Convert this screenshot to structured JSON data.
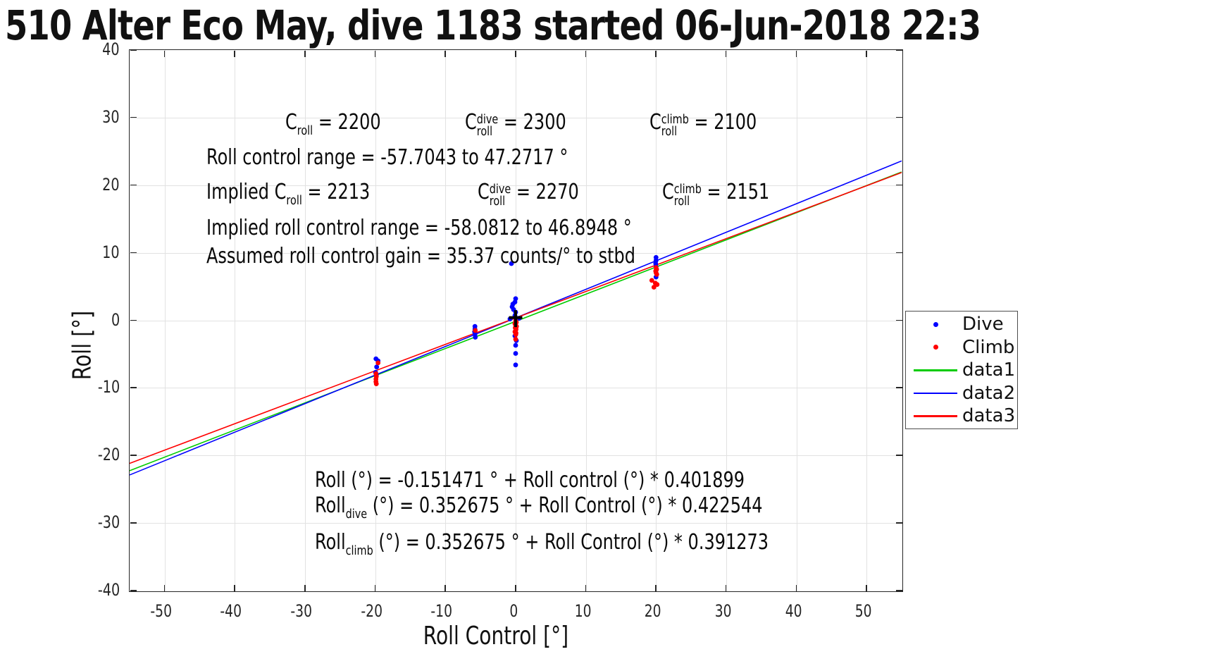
{
  "title": "510 Alter Eco May, dive 1183 started 06-Jun-2018 22:3",
  "colors": {
    "dive": "#0000ff",
    "climb": "#ff0000",
    "data1": "#00cc00",
    "data2": "#0000ff",
    "data3": "#ff0000",
    "axis": "#262626",
    "grid": "#e2e2e2",
    "cross_marker": "#000000"
  },
  "chart_data": {
    "type": "scatter",
    "title": "510 Alter Eco May, dive 1183 started 06-Jun-2018 22:3",
    "xlabel": "Roll Control [°]",
    "ylabel": "Roll [°]",
    "xlim": [
      -55,
      55
    ],
    "ylim": [
      -40,
      40
    ],
    "xticks": [
      -50,
      -40,
      -30,
      -20,
      -10,
      0,
      10,
      20,
      30,
      40,
      50
    ],
    "yticks": [
      -40,
      -30,
      -20,
      -10,
      0,
      10,
      20,
      30,
      40
    ],
    "grid": true,
    "legend": {
      "position": "right",
      "entries": [
        {
          "label": "Dive",
          "marker": "dot",
          "color": "#0000ff"
        },
        {
          "label": "Climb",
          "marker": "dot",
          "color": "#ff0000"
        },
        {
          "label": "data1",
          "marker": "line",
          "color": "#00cc00"
        },
        {
          "label": "data2",
          "marker": "line",
          "color": "#0000ff"
        },
        {
          "label": "data3",
          "marker": "line",
          "color": "#ff0000"
        }
      ]
    },
    "series": [
      {
        "name": "Dive",
        "type": "scatter",
        "color": "#0000ff",
        "points": [
          [
            -19.9,
            -5.7
          ],
          [
            -19.6,
            -6.0
          ],
          [
            -19.8,
            -6.9
          ],
          [
            -19.95,
            -7.7
          ],
          [
            -19.85,
            -8.1
          ],
          [
            -5.8,
            -0.9
          ],
          [
            -5.8,
            -1.3
          ],
          [
            -5.85,
            -1.7
          ],
          [
            -5.8,
            -2.1
          ],
          [
            -5.75,
            -2.5
          ],
          [
            -0.6,
            8.4
          ],
          [
            0,
            3.2
          ],
          [
            -0.1,
            2.7
          ],
          [
            -0.4,
            2.4
          ],
          [
            -0.5,
            2.0
          ],
          [
            -0.3,
            1.6
          ],
          [
            0,
            1.2
          ],
          [
            -0.1,
            0.7
          ],
          [
            -0.8,
            0.2
          ],
          [
            0.5,
            0.3
          ],
          [
            0,
            -0.2
          ],
          [
            -0.1,
            -2.3
          ],
          [
            0.1,
            -3.0
          ],
          [
            0,
            -3.7
          ],
          [
            0,
            -4.9
          ],
          [
            0,
            -6.6
          ],
          [
            20,
            9.3
          ],
          [
            20,
            8.85
          ],
          [
            19.95,
            8.4
          ],
          [
            20,
            7.95
          ],
          [
            20.05,
            7.5
          ],
          [
            20,
            6.4
          ]
        ]
      },
      {
        "name": "Climb",
        "type": "scatter",
        "color": "#ff0000",
        "points": [
          [
            -19.6,
            -6.3
          ],
          [
            -19.9,
            -7.9
          ],
          [
            -19.85,
            -8.3
          ],
          [
            -19.9,
            -8.7
          ],
          [
            -19.9,
            -9.1
          ],
          [
            -19.85,
            -9.4
          ],
          [
            -5.75,
            -1.5
          ],
          [
            0,
            -0.1
          ],
          [
            0.1,
            -0.3
          ],
          [
            -0.1,
            -0.5
          ],
          [
            0,
            -0.7
          ],
          [
            0.12,
            -0.9
          ],
          [
            -0.06,
            -1.1
          ],
          [
            0.06,
            -1.3
          ],
          [
            0,
            -1.5
          ],
          [
            -0.1,
            -1.7
          ],
          [
            0.05,
            -1.9
          ],
          [
            0.02,
            -2.1
          ],
          [
            0,
            -2.8
          ],
          [
            20,
            7.8
          ],
          [
            20.08,
            7.55
          ],
          [
            19.95,
            7.3
          ],
          [
            20,
            7.05
          ],
          [
            20.1,
            6.8
          ],
          [
            19.4,
            5.9
          ],
          [
            19.9,
            5.5
          ],
          [
            20.15,
            5.3
          ],
          [
            19.7,
            4.9
          ]
        ]
      },
      {
        "name": "data1",
        "type": "line",
        "color": "#00cc00",
        "intercept": -0.151471,
        "slope": 0.401899
      },
      {
        "name": "data2",
        "type": "line",
        "color": "#0000ff",
        "intercept": 0.352675,
        "slope": 0.422544
      },
      {
        "name": "data3",
        "type": "line",
        "color": "#ff0000",
        "intercept": 0.352675,
        "slope": 0.391273
      }
    ],
    "cross_marker": {
      "x": 0,
      "y": 0.4,
      "half_width": 0.95,
      "half_up": 1.1,
      "half_down": 1.4,
      "color": "#000000"
    },
    "annotations": [
      {
        "left": 405,
        "top": 155,
        "parts": [
          {
            "t": "txt",
            "v": "C"
          },
          {
            "t": "sub",
            "v": "roll"
          },
          {
            "t": "txt",
            "v": " = 2200"
          }
        ]
      },
      {
        "left": 660,
        "top": 155,
        "parts": [
          {
            "t": "txt",
            "v": "C"
          },
          {
            "t": "ss",
            "sup": "dive",
            "sub": "roll"
          },
          {
            "t": "txt",
            "v": " = 2300"
          }
        ]
      },
      {
        "left": 922,
        "top": 155,
        "parts": [
          {
            "t": "txt",
            "v": "C"
          },
          {
            "t": "ss",
            "sup": "climb",
            "sub": "roll"
          },
          {
            "t": "txt",
            "v": " = 2100"
          }
        ]
      },
      {
        "left": 293,
        "top": 205,
        "parts": [
          {
            "t": "txt",
            "v": "Roll control range = -57.7043 to 47.2717 °"
          }
        ]
      },
      {
        "left": 293,
        "top": 254,
        "parts": [
          {
            "t": "txt",
            "v": "Implied C"
          },
          {
            "t": "sub",
            "v": "roll"
          },
          {
            "t": "txt",
            "v": " = 2213"
          }
        ]
      },
      {
        "left": 678,
        "top": 254,
        "parts": [
          {
            "t": "txt",
            "v": "C"
          },
          {
            "t": "ss",
            "sup": "dive",
            "sub": "roll"
          },
          {
            "t": "txt",
            "v": " = 2270"
          }
        ]
      },
      {
        "left": 940,
        "top": 254,
        "parts": [
          {
            "t": "txt",
            "v": "C"
          },
          {
            "t": "ss",
            "sup": "climb",
            "sub": "roll"
          },
          {
            "t": "txt",
            "v": " = 2151"
          }
        ]
      },
      {
        "left": 293,
        "top": 305,
        "parts": [
          {
            "t": "txt",
            "v": "Implied roll control range = -58.0812 to 46.8948 °"
          }
        ]
      },
      {
        "left": 293,
        "top": 345,
        "parts": [
          {
            "t": "txt",
            "v": "Assumed roll control gain = 35.37 counts/° to stbd"
          }
        ]
      },
      {
        "left": 447,
        "top": 663,
        "parts": [
          {
            "t": "txt",
            "v": "Roll (°) = -0.151471 ° + Roll control (°) * 0.401899"
          }
        ]
      },
      {
        "left": 447,
        "top": 699,
        "parts": [
          {
            "t": "txt",
            "v": "Roll"
          },
          {
            "t": "sub",
            "v": "dive"
          },
          {
            "t": "txt",
            "v": " (°) = 0.352675 ° + Roll Control (°) * 0.422544"
          }
        ]
      },
      {
        "left": 447,
        "top": 751,
        "parts": [
          {
            "t": "txt",
            "v": "Roll"
          },
          {
            "t": "sub",
            "v": "climb"
          },
          {
            "t": "txt",
            "v": " (°) = 0.352675 ° + Roll Control (°) * 0.391273"
          }
        ]
      }
    ]
  }
}
